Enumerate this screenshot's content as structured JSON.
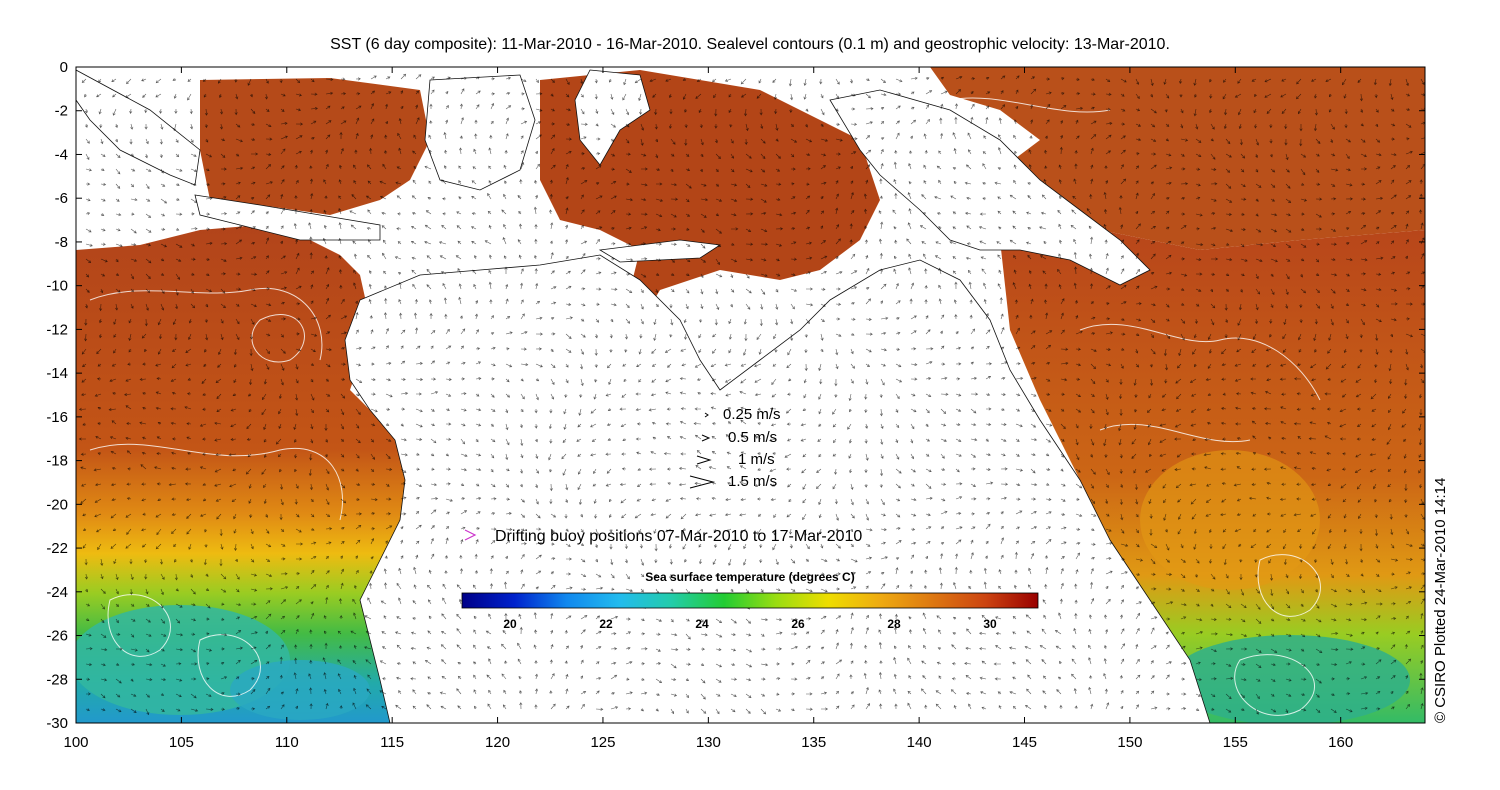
{
  "title": "SST (6 day composite): 11-Mar-2010 - 16-Mar-2010. Sealevel contours (0.1 m) and geostrophic velocity: 13-Mar-2010.",
  "axes": {
    "x_ticks": [
      "100",
      "105",
      "110",
      "115",
      "120",
      "125",
      "130",
      "135",
      "140",
      "145",
      "150",
      "155",
      "160"
    ],
    "y_ticks": [
      "0",
      "-2",
      "-4",
      "-6",
      "-8",
      "-10",
      "-12",
      "-14",
      "-16",
      "-18",
      "-20",
      "-22",
      "-24",
      "-26",
      "-28",
      "-30"
    ],
    "lon_range": [
      100,
      164
    ],
    "lat_range": [
      -30,
      0
    ]
  },
  "velocity_legend": [
    {
      "label": "0.25 m/s",
      "speed": 0.25
    },
    {
      "label": "0.5 m/s",
      "speed": 0.5
    },
    {
      "label": "1 m/s",
      "speed": 1
    },
    {
      "label": "1.5 m/s",
      "speed": 1.5
    }
  ],
  "buoy_legend": {
    "label": "Drifting buoy positions 07-Mar-2010 to 17-Mar-2010",
    "marker_color": "#cc33cc"
  },
  "colorbar": {
    "title": "Sea surface temperature (degrees C)",
    "range": [
      19,
      31
    ],
    "ticks": [
      "20",
      "22",
      "24",
      "26",
      "28",
      "30"
    ],
    "colors": [
      "#000088",
      "#0022cc",
      "#1188ee",
      "#22bbee",
      "#22ccaa",
      "#22cc33",
      "#99dd11",
      "#eedd00",
      "#eeaa11",
      "#dd7711",
      "#cc4411",
      "#990000"
    ]
  },
  "credit": "© CSIRO Plotted 24-Mar-2010 14:14"
}
